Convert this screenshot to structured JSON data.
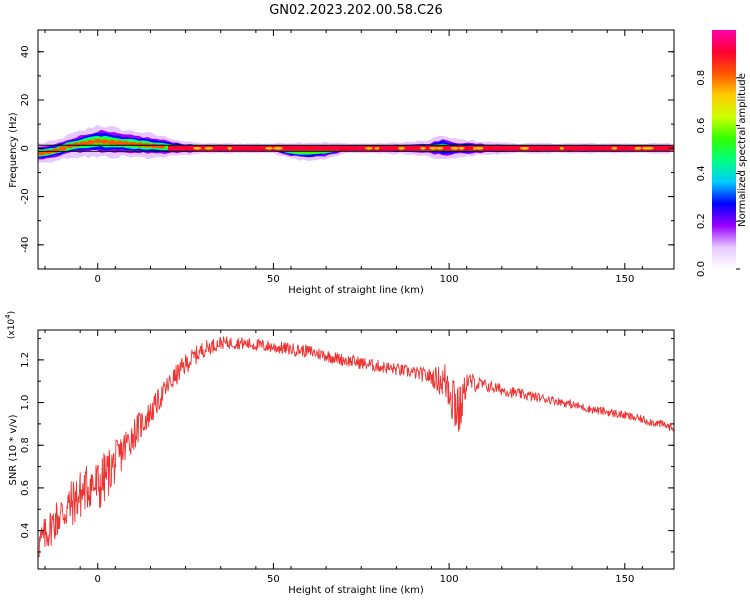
{
  "title": "GN02.2023.202.00.58.C26",
  "chart_data": [
    {
      "type": "heatmap",
      "title": "GN02.2023.202.00.58.C26",
      "xlabel": "Height of straight line (km)",
      "ylabel": "Frequency (Hz)",
      "xlim": [
        -17,
        164
      ],
      "ylim": [
        -50,
        49
      ],
      "xticks": [
        0,
        50,
        100,
        150
      ],
      "yticks": [
        -40,
        -20,
        0,
        20,
        40
      ],
      "xtick_labels": [
        "0",
        "50",
        "100",
        "150"
      ],
      "ytick_labels": [
        "-40",
        "-20",
        "0",
        "20",
        "40"
      ],
      "band": {
        "description_values": "dominant frequency track near 0 Hz across the height range",
        "x": [
          -16,
          -12,
          -8,
          -4,
          0,
          4,
          8,
          12,
          16,
          20,
          25,
          30,
          40,
          50,
          55,
          60,
          65,
          70,
          80,
          90,
          95,
          98,
          100,
          110,
          120,
          130,
          140,
          150,
          160,
          164
        ],
        "center_hz": [
          -2,
          -1,
          1,
          2,
          3,
          2.5,
          2,
          1.5,
          1,
          0.5,
          0,
          0,
          0,
          0,
          -1,
          -1.5,
          -1,
          0,
          0,
          0,
          0,
          0.5,
          0,
          0,
          0,
          0,
          0,
          0,
          0,
          0
        ],
        "halfwidth_hz": [
          3,
          3,
          3.5,
          4,
          5,
          4.5,
          4,
          4,
          3.5,
          3,
          2,
          1.5,
          1.5,
          1.5,
          2.5,
          3,
          2.5,
          1.5,
          1.5,
          2,
          2.5,
          4,
          3,
          2,
          1.5,
          1.5,
          1.5,
          1.5,
          1.5,
          1.5
        ]
      },
      "track_hz": 0,
      "colorbar": {
        "label": "Normalized spectral amplitude",
        "range": [
          0,
          1
        ],
        "ticks": [
          0.0,
          0.2,
          0.4,
          0.6,
          0.8
        ],
        "tick_labels": [
          "0.0",
          "0.2",
          "0.4",
          "0.6",
          "0.8"
        ],
        "colors": [
          "#ffffff",
          "#e6c8ff",
          "#9900ff",
          "#0000ff",
          "#00ccff",
          "#00ff80",
          "#33ff00",
          "#ccff00",
          "#ffcc00",
          "#ff5500",
          "#ff0033",
          "#ff00aa"
        ]
      }
    },
    {
      "type": "line",
      "xlabel": "Height of straight line (km)",
      "ylabel": "SNR (10 * v/v)",
      "yscale_label": "(x10",
      "yscale_exp": "4",
      "yscale_close": ")",
      "xlim": [
        -17,
        164
      ],
      "ylim": [
        0.22,
        1.34
      ],
      "xticks": [
        0,
        50,
        100,
        150
      ],
      "yticks": [
        0.4,
        0.6,
        0.8,
        1.0,
        1.2
      ],
      "xtick_labels": [
        "0",
        "50",
        "100",
        "150"
      ],
      "ytick_labels": [
        "0.4",
        "0.6",
        "0.8",
        "1.0",
        "1.2"
      ],
      "color": "#ee3333",
      "series": [
        {
          "name": "SNR",
          "x": [
            -17,
            -12,
            -6,
            -2,
            0,
            5,
            10,
            15,
            20,
            25,
            30,
            35,
            40,
            50,
            60,
            70,
            80,
            90,
            95,
            98,
            100,
            102,
            103,
            105,
            110,
            120,
            130,
            140,
            150,
            160,
            164
          ],
          "y": [
            0.33,
            0.45,
            0.55,
            0.62,
            0.6,
            0.72,
            0.85,
            0.95,
            1.08,
            1.18,
            1.25,
            1.28,
            1.28,
            1.26,
            1.24,
            1.2,
            1.17,
            1.14,
            1.12,
            1.1,
            1.09,
            1.0,
            0.95,
            1.1,
            1.08,
            1.04,
            1.01,
            0.97,
            0.94,
            0.9,
            0.88
          ],
          "noise_amplitude": [
            0.08,
            0.1,
            0.12,
            0.12,
            0.14,
            0.1,
            0.08,
            0.06,
            0.05,
            0.05,
            0.04,
            0.03,
            0.03,
            0.03,
            0.03,
            0.03,
            0.03,
            0.03,
            0.04,
            0.08,
            0.14,
            0.18,
            0.12,
            0.05,
            0.03,
            0.025,
            0.02,
            0.02,
            0.02,
            0.02,
            0.02
          ]
        }
      ]
    }
  ]
}
